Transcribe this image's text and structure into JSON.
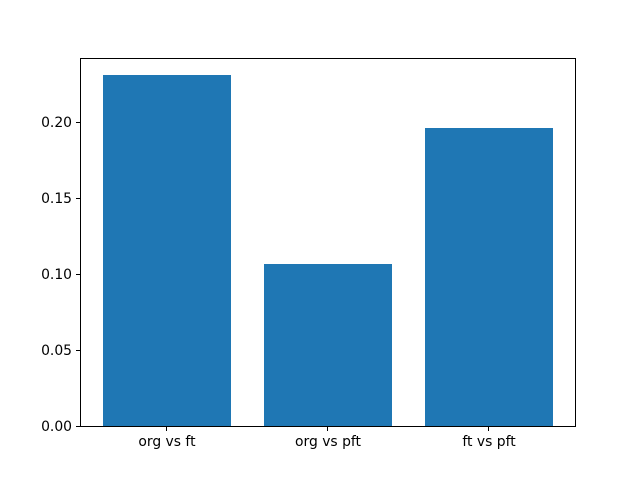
{
  "chart_data": {
    "type": "bar",
    "categories": [
      "org vs ft",
      "org vs pft",
      "ft vs pft"
    ],
    "values": [
      0.231,
      0.107,
      0.196
    ],
    "title": "",
    "xlabel": "",
    "ylabel": "",
    "ylim": [
      0,
      0.243
    ],
    "yticks": {
      "values": [
        0,
        0.05,
        0.1,
        0.15,
        0.2
      ],
      "labels": [
        "0.00",
        "0.05",
        "0.10",
        "0.15",
        "0.20"
      ]
    },
    "bar_color": "#1f77b4",
    "axes_background": "#ffffff",
    "figure_background": "#ffffff",
    "grid": false,
    "legend": null
  }
}
